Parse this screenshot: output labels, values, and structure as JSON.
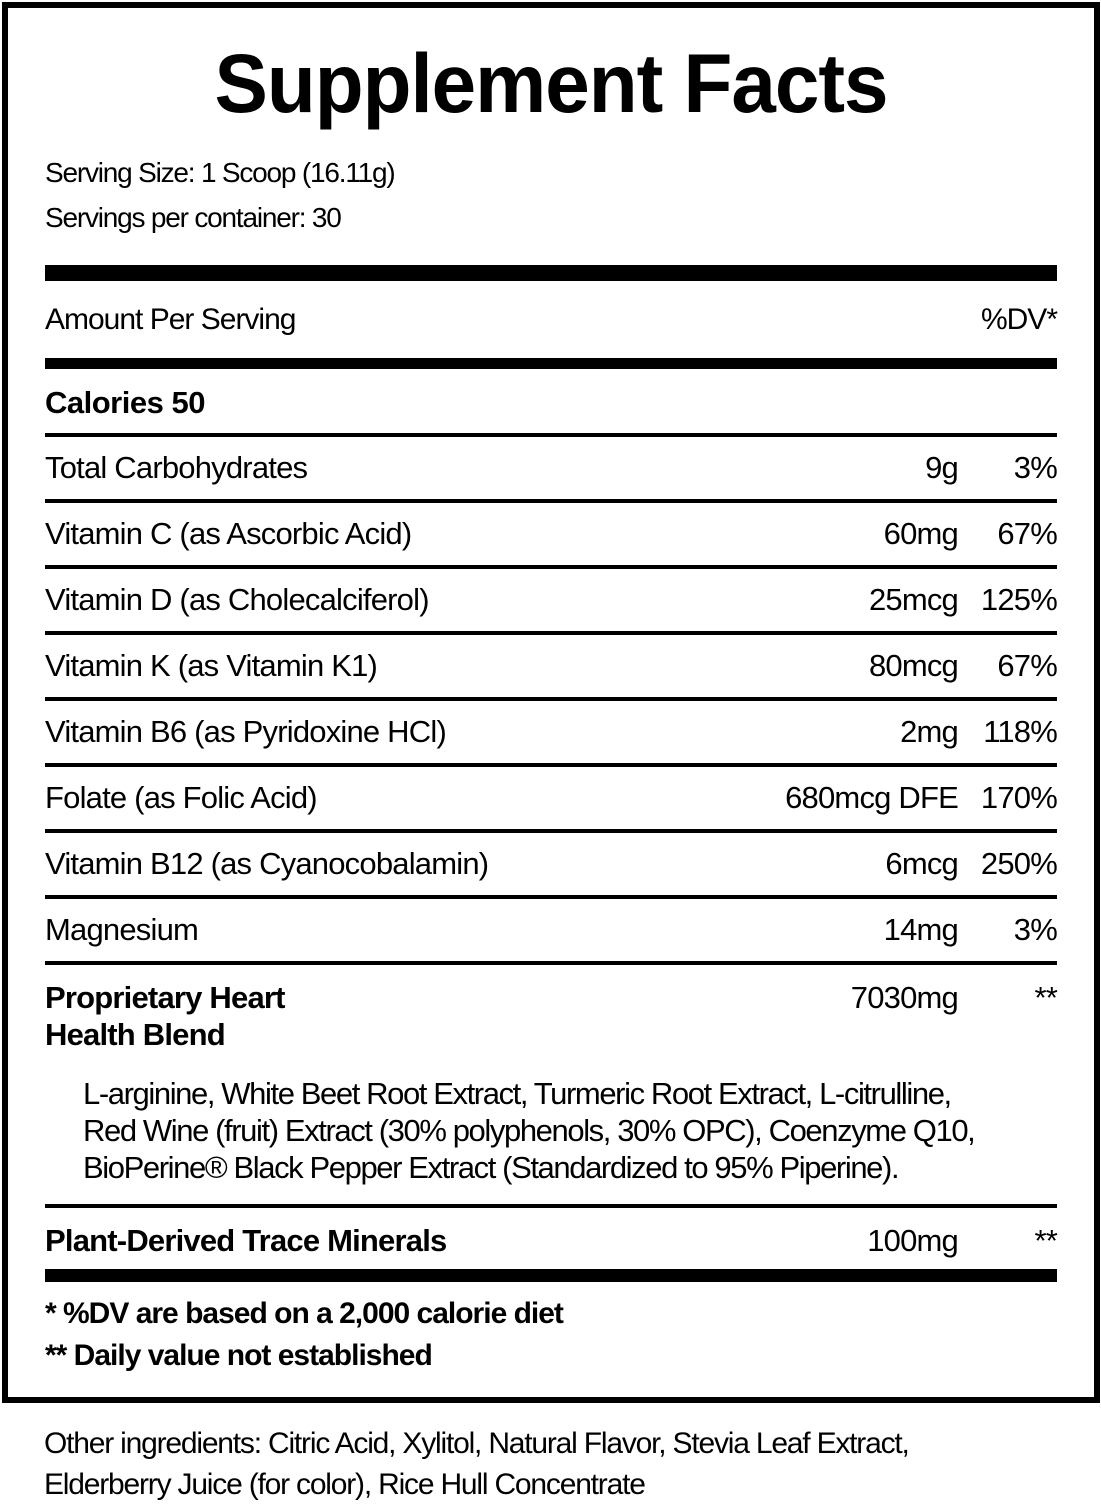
{
  "title": "Supplement Facts",
  "serving_info": {
    "serving_size": "Serving Size: 1 Scoop (16.11g)",
    "servings_per_container": "Servings per container: 30"
  },
  "table": {
    "header": {
      "amount_label": "Amount Per Serving",
      "dv_label": "%DV*"
    },
    "calories": "Calories 50",
    "rows": [
      {
        "label": "Total Carbohydrates",
        "amount": "9g",
        "dv": "3%"
      },
      {
        "label": "Vitamin C (as Ascorbic Acid)",
        "amount": "60mg",
        "dv": "67%"
      },
      {
        "label": "Vitamin D (as Cholecalciferol)",
        "amount": "25mcg",
        "dv": "125%"
      },
      {
        "label": "Vitamin K (as Vitamin K1)",
        "amount": "80mcg",
        "dv": "67%"
      },
      {
        "label": "Vitamin B6 (as Pyridoxine HCl)",
        "amount": "2mg",
        "dv": "118%"
      },
      {
        "label": "Folate (as Folic Acid)",
        "amount": "680mcg DFE",
        "dv": "170%"
      },
      {
        "label": "Vitamin B12 (as Cyanocobalamin)",
        "amount": "6mcg",
        "dv": "250%"
      },
      {
        "label": "Magnesium",
        "amount": "14mg",
        "dv": "3%"
      }
    ],
    "blend": {
      "name": "Proprietary Heart\nHealth Blend",
      "amount": "7030mg",
      "dv": "**",
      "ingredients": "L-arginine, White Beet Root Extract, Turmeric Root Extract, L-citrulline,\nRed Wine (fruit) Extract (30% polyphenols, 30% OPC), Coenzyme Q10,\nBioPerine® Black Pepper Extract (Standardized to 95% Piperine)."
    },
    "trace_minerals": {
      "label": "Plant-Derived Trace Minerals",
      "amount": "100mg",
      "dv": "**"
    }
  },
  "footnotes": {
    "dv_note": "* %DV are based on a 2,000 calorie diet",
    "daily_value_note": "** Daily value not established"
  },
  "other_ingredients": "Other ingredients: Citric Acid, Xylitol, Natural Flavor, Stevia Leaf Extract,\nElderberry Juice (for color), Rice Hull Concentrate",
  "colors": {
    "text": "#000000",
    "background": "#ffffff",
    "rule": "#000000"
  }
}
